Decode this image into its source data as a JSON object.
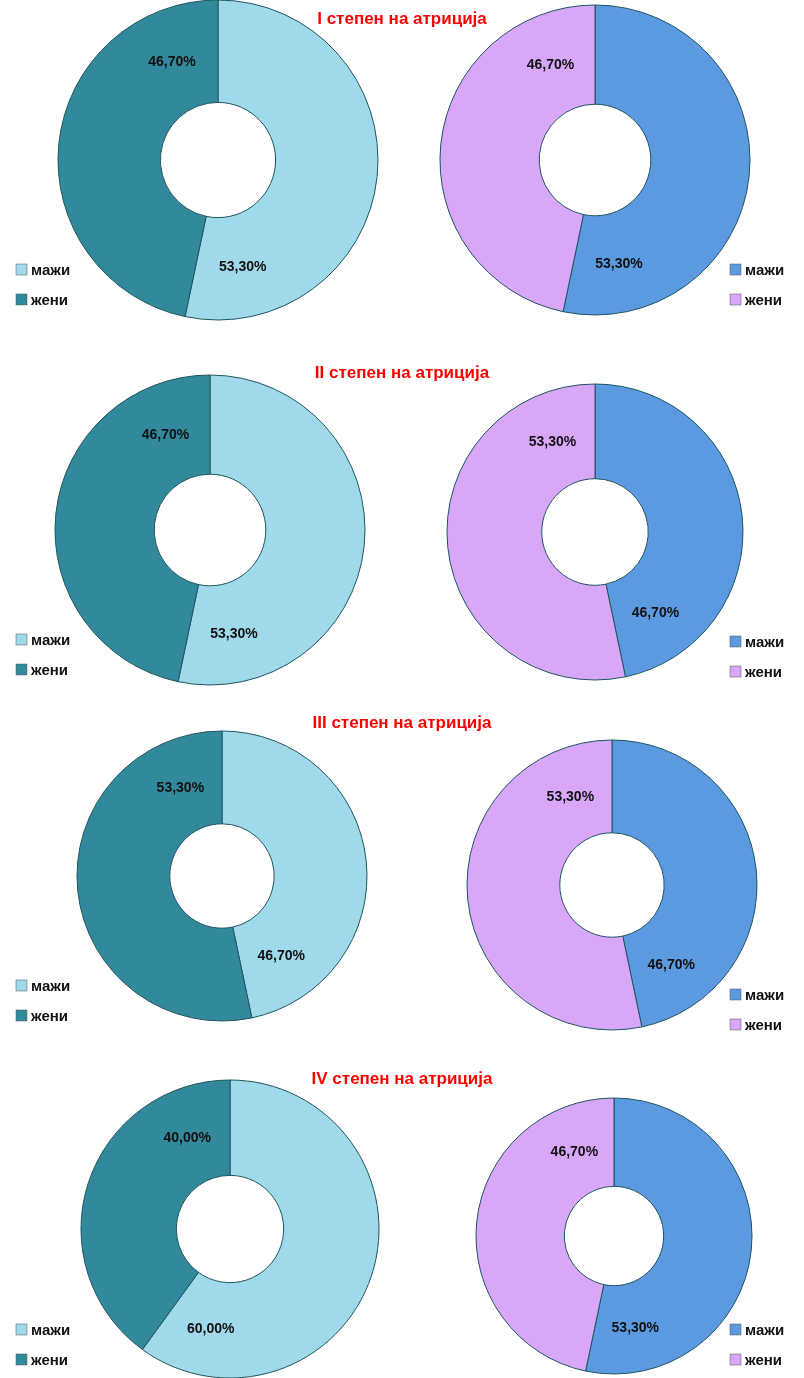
{
  "chart_data": [
    {
      "type": "donut",
      "title": "I степен на атриција",
      "categories": [
        "мажи",
        "жени"
      ],
      "values": [
        53.3,
        46.7
      ],
      "colors": [
        "#9fd9ea",
        "#33899c"
      ],
      "value_labels": [
        "53,30%",
        "46,70%"
      ],
      "legend": "bottom left"
    },
    {
      "type": "donut",
      "categories": [
        "мажи",
        "жени"
      ],
      "values": [
        53.3,
        46.7
      ],
      "colors": [
        "#5b9ae0",
        "#d8a7f8"
      ],
      "value_labels": [
        "53,30%",
        "46,70%"
      ],
      "legend": "bottom right"
    },
    {
      "type": "donut",
      "title": "II степен на атриција",
      "categories": [
        "мажи",
        "жени"
      ],
      "values": [
        53.3,
        46.7
      ],
      "colors": [
        "#9fd9ea",
        "#33899c"
      ],
      "value_labels": [
        "53,30%",
        "46,70%"
      ],
      "legend": "bottom left"
    },
    {
      "type": "donut",
      "categories": [
        "мажи",
        "жени"
      ],
      "values": [
        46.7,
        53.3
      ],
      "colors": [
        "#5b9ae0",
        "#d8a7f8"
      ],
      "value_labels": [
        "46,70%",
        "53,30%"
      ],
      "legend": "bottom right"
    },
    {
      "type": "donut",
      "title": "III степен на атриција",
      "categories": [
        "мажи",
        "жени"
      ],
      "values": [
        46.7,
        53.3
      ],
      "colors": [
        "#9fd9ea",
        "#33899c"
      ],
      "value_labels": [
        "46,70%",
        "53,30%"
      ],
      "legend": "bottom left"
    },
    {
      "type": "donut",
      "categories": [
        "мажи",
        "жени"
      ],
      "values": [
        46.7,
        53.3
      ],
      "colors": [
        "#5b9ae0",
        "#d8a7f8"
      ],
      "value_labels": [
        "46,70%",
        "53,30%"
      ],
      "legend": "bottom right"
    },
    {
      "type": "donut",
      "title": "IV степен на атриција",
      "categories": [
        "мажи",
        "жени"
      ],
      "values": [
        60,
        40
      ],
      "colors": [
        "#9fd9ea",
        "#33899c"
      ],
      "value_labels": [
        "60,00%",
        "40,00%"
      ],
      "legend": "bottom left"
    },
    {
      "type": "donut",
      "categories": [
        "мажи",
        "жени"
      ],
      "values": [
        53.3,
        46.7
      ],
      "colors": [
        "#5b9ae0",
        "#d8a7f8"
      ],
      "value_labels": [
        "53,30%",
        "46,70%"
      ],
      "legend": "bottom right"
    }
  ]
}
